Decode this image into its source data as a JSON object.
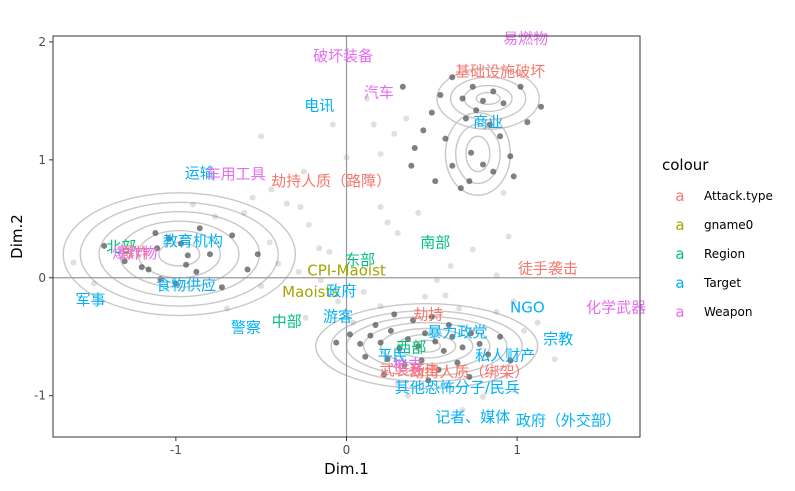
{
  "chart_data": {
    "type": "scatter",
    "xlabel": "Dim.1",
    "ylabel": "Dim.2",
    "xlim": [
      -1.72,
      1.72
    ],
    "ylim": [
      -1.35,
      2.05
    ],
    "x_ticks": [
      -1,
      0,
      1
    ],
    "y_ticks": [
      -1,
      0,
      1,
      2
    ],
    "grid": false,
    "reference_lines": {
      "x": 0,
      "y": 0
    },
    "legend": {
      "title": "colour",
      "position": "right",
      "key_glyph": "a",
      "entries": [
        {
          "name": "Attack.type",
          "color": "#F8766D"
        },
        {
          "name": "gname0",
          "color": "#A3A500"
        },
        {
          "name": "Region",
          "color": "#00BF7D"
        },
        {
          "name": "Target",
          "color": "#00B0F6"
        },
        {
          "name": "Weapon",
          "color": "#E76BF3"
        }
      ]
    },
    "colors": {
      "Attack.type": "#F8766D",
      "gname0": "#A3A500",
      "Region": "#00BF7D",
      "Target": "#00B0F6",
      "Weapon": "#E76BF3",
      "contour": "#c8c8c8",
      "point": "#555555"
    },
    "labels": [
      {
        "text": "破坏装备",
        "x": -0.02,
        "y": 1.88,
        "group": "Weapon"
      },
      {
        "text": "易燃物",
        "x": 1.05,
        "y": 2.03,
        "group": "Weapon"
      },
      {
        "text": "基础设施破坏",
        "x": 0.9,
        "y": 1.75,
        "group": "Attack.type"
      },
      {
        "text": "汽车",
        "x": 0.19,
        "y": 1.57,
        "group": "Weapon"
      },
      {
        "text": "电讯",
        "x": -0.16,
        "y": 1.46,
        "group": "Target"
      },
      {
        "text": "商业",
        "x": 0.83,
        "y": 1.32,
        "group": "Target"
      },
      {
        "text": "运输",
        "x": -0.86,
        "y": 0.89,
        "group": "Target"
      },
      {
        "text": "车用工具",
        "x": -0.65,
        "y": 0.88,
        "group": "Weapon"
      },
      {
        "text": "劫持人质（路障）",
        "x": -0.09,
        "y": 0.82,
        "group": "Attack.type"
      },
      {
        "text": "北部",
        "x": -1.32,
        "y": 0.26,
        "group": "Region"
      },
      {
        "text": "爆炸",
        "x": -1.24,
        "y": 0.21,
        "group": "Attack.type"
      },
      {
        "text": "爆炸物",
        "x": -1.24,
        "y": 0.21,
        "group": "Weapon"
      },
      {
        "text": "教育机构",
        "x": -0.9,
        "y": 0.31,
        "group": "Target"
      },
      {
        "text": "南部",
        "x": 0.52,
        "y": 0.3,
        "group": "Region"
      },
      {
        "text": "东部",
        "x": 0.08,
        "y": 0.15,
        "group": "Region"
      },
      {
        "text": "CPI-Maoist",
        "x": 0.0,
        "y": 0.06,
        "group": "gname0"
      },
      {
        "text": "徒手袭击",
        "x": 1.18,
        "y": 0.08,
        "group": "Attack.type"
      },
      {
        "text": "食物供应",
        "x": -0.94,
        "y": -0.06,
        "group": "Target"
      },
      {
        "text": "军事",
        "x": -1.5,
        "y": -0.19,
        "group": "Target"
      },
      {
        "text": "Maoists",
        "x": -0.21,
        "y": -0.12,
        "group": "gname0"
      },
      {
        "text": "政府",
        "x": -0.03,
        "y": -0.11,
        "group": "Target"
      },
      {
        "text": "NGO",
        "x": 1.06,
        "y": -0.25,
        "group": "Target"
      },
      {
        "text": "化学武器",
        "x": 1.58,
        "y": -0.25,
        "group": "Weapon"
      },
      {
        "text": "警察",
        "x": -0.59,
        "y": -0.42,
        "group": "Target"
      },
      {
        "text": "中部",
        "x": -0.35,
        "y": -0.37,
        "group": "Region"
      },
      {
        "text": "游客",
        "x": -0.05,
        "y": -0.33,
        "group": "Target"
      },
      {
        "text": "劫持",
        "x": 0.48,
        "y": -0.31,
        "group": "Attack.type"
      },
      {
        "text": "暴力政党",
        "x": 0.65,
        "y": -0.46,
        "group": "Target"
      },
      {
        "text": "宗教",
        "x": 1.24,
        "y": -0.52,
        "group": "Target"
      },
      {
        "text": "西部",
        "x": 0.38,
        "y": -0.59,
        "group": "Region"
      },
      {
        "text": "武装袭击",
        "x": 0.37,
        "y": -0.78,
        "group": "Attack.type"
      },
      {
        "text": "平民",
        "x": 0.27,
        "y": -0.66,
        "group": "Target"
      },
      {
        "text": "私人财产",
        "x": 0.93,
        "y": -0.66,
        "group": "Target"
      },
      {
        "text": "枪支",
        "x": 0.36,
        "y": -0.74,
        "group": "Weapon"
      },
      {
        "text": "劫持人质（绑架）",
        "x": 0.72,
        "y": -0.8,
        "group": "Attack.type"
      },
      {
        "text": "其他恐怖分子/民兵",
        "x": 0.65,
        "y": -0.93,
        "group": "Target"
      },
      {
        "text": "记者、媒体",
        "x": 0.74,
        "y": -1.18,
        "group": "Target"
      },
      {
        "text": "政府（外交部）",
        "x": 1.3,
        "y": -1.21,
        "group": "Target"
      }
    ],
    "points": [
      [
        -1.04,
        0.33
      ],
      [
        -0.97,
        0.29
      ],
      [
        -0.93,
        0.19
      ],
      [
        -1.11,
        0.25
      ],
      [
        -1.16,
        0.07
      ],
      [
        -0.94,
        0.11
      ],
      [
        -0.86,
        0.42
      ],
      [
        -0.8,
        0.2
      ],
      [
        -1.2,
        0.09
      ],
      [
        -1.09,
        -0.01
      ],
      [
        -1.0,
        -0.05
      ],
      [
        -0.88,
        0.05
      ],
      [
        -1.12,
        0.38
      ],
      [
        -0.77,
        0.52
      ],
      [
        -0.67,
        0.36
      ],
      [
        -0.58,
        0.07
      ],
      [
        -0.52,
        0.2
      ],
      [
        -0.45,
        0.3
      ],
      [
        -0.6,
        0.55
      ],
      [
        -0.35,
        0.63
      ],
      [
        -0.73,
        -0.08
      ],
      [
        -1.3,
        0.14
      ],
      [
        -0.4,
        0.12
      ],
      [
        -0.27,
        0.6
      ],
      [
        -0.16,
        0.25
      ],
      [
        -0.9,
        0.62
      ],
      [
        -0.5,
        -0.07
      ],
      [
        -1.42,
        0.27
      ],
      [
        -0.7,
        -0.26
      ],
      [
        -0.28,
        0.05
      ],
      [
        -0.1,
        0.22
      ],
      [
        -1.6,
        0.13
      ],
      [
        -0.44,
        0.75
      ],
      [
        -0.22,
        0.45
      ],
      [
        -1.48,
        -0.05
      ],
      [
        0.02,
        -0.48
      ],
      [
        0.08,
        -0.56
      ],
      [
        0.14,
        -0.49
      ],
      [
        0.2,
        -0.55
      ],
      [
        0.26,
        -0.45
      ],
      [
        0.31,
        -0.6
      ],
      [
        0.36,
        -0.52
      ],
      [
        0.42,
        -0.58
      ],
      [
        0.46,
        -0.47
      ],
      [
        0.52,
        -0.54
      ],
      [
        0.57,
        -0.62
      ],
      [
        0.62,
        -0.5
      ],
      [
        0.68,
        -0.59
      ],
      [
        0.73,
        -0.47
      ],
      [
        0.78,
        -0.56
      ],
      [
        0.24,
        -0.69
      ],
      [
        0.34,
        -0.74
      ],
      [
        0.44,
        -0.7
      ],
      [
        0.54,
        -0.78
      ],
      [
        0.65,
        -0.72
      ],
      [
        0.11,
        -0.67
      ],
      [
        0.39,
        -0.36
      ],
      [
        0.5,
        -0.33
      ],
      [
        0.6,
        -0.4
      ],
      [
        0.28,
        -0.31
      ],
      [
        0.17,
        -0.4
      ],
      [
        -0.06,
        -0.55
      ],
      [
        0.83,
        -0.65
      ],
      [
        0.9,
        -0.5
      ],
      [
        0.48,
        -0.87
      ],
      [
        0.6,
        -0.91
      ],
      [
        0.72,
        -0.84
      ],
      [
        0.3,
        -0.9
      ],
      [
        0.04,
        -0.38
      ],
      [
        0.96,
        -0.7
      ],
      [
        0.2,
        -0.24
      ],
      [
        0.66,
        -0.26
      ],
      [
        0.58,
        -0.15
      ],
      [
        0.46,
        -0.16
      ],
      [
        0.88,
        -0.29
      ],
      [
        1.04,
        -0.45
      ],
      [
        0.8,
        -1.01
      ],
      [
        0.36,
        -1.0
      ],
      [
        0.53,
        -0.02
      ],
      [
        0.88,
        0.02
      ],
      [
        0.98,
        -0.2
      ],
      [
        0.3,
        0.38
      ],
      [
        0.42,
        0.55
      ],
      [
        0.61,
        0.1
      ],
      [
        0.2,
        0.6
      ],
      [
        0.74,
        0.24
      ],
      [
        0.95,
        0.35
      ],
      [
        0.12,
        0.86
      ],
      [
        0.24,
        0.47
      ],
      [
        -0.05,
        -0.2
      ],
      [
        0.1,
        -0.12
      ],
      [
        1.12,
        -0.38
      ],
      [
        1.22,
        -0.69
      ],
      [
        0.68,
        -1.12
      ],
      [
        0.98,
        -0.95
      ],
      [
        0.22,
        -0.82
      ],
      [
        -0.24,
        -0.34
      ],
      [
        -0.15,
        -0.02
      ],
      [
        0.68,
        1.52
      ],
      [
        0.74,
        1.62
      ],
      [
        0.8,
        1.5
      ],
      [
        0.86,
        1.58
      ],
      [
        0.92,
        1.48
      ],
      [
        0.76,
        1.42
      ],
      [
        0.7,
        1.35
      ],
      [
        0.84,
        1.3
      ],
      [
        0.9,
        1.2
      ],
      [
        0.73,
        1.06
      ],
      [
        0.8,
        0.96
      ],
      [
        0.72,
        0.82
      ],
      [
        0.67,
        0.76
      ],
      [
        0.86,
        0.9
      ],
      [
        0.96,
        1.03
      ],
      [
        0.62,
        1.7
      ],
      [
        0.55,
        1.55
      ],
      [
        0.5,
        1.4
      ],
      [
        1.02,
        1.62
      ],
      [
        0.62,
        0.95
      ],
      [
        1.06,
        1.32
      ],
      [
        0.58,
        1.18
      ],
      [
        0.45,
        1.25
      ],
      [
        0.35,
        1.35
      ],
      [
        0.28,
        1.22
      ],
      [
        0.2,
        1.05
      ],
      [
        0.38,
        0.95
      ],
      [
        0.52,
        0.82
      ],
      [
        1.14,
        1.45
      ],
      [
        0.33,
        1.62
      ],
      [
        0.16,
        1.3
      ],
      [
        0.98,
        0.86
      ],
      [
        0.12,
        1.52
      ],
      [
        0.4,
        1.1
      ],
      [
        0.92,
        0.72
      ],
      [
        -0.5,
        1.2
      ],
      [
        -0.55,
        0.68
      ],
      [
        -0.25,
        0.9
      ],
      [
        0.0,
        1.02
      ],
      [
        -0.08,
        1.3
      ]
    ],
    "contours": [
      {
        "cx": -0.98,
        "cy": 0.2,
        "levels": [
          [
            0.12,
            0.1
          ],
          [
            0.24,
            0.2
          ],
          [
            0.35,
            0.28
          ],
          [
            0.47,
            0.36
          ],
          [
            0.58,
            0.44
          ],
          [
            0.68,
            0.52
          ]
        ]
      },
      {
        "cx": 0.47,
        "cy": -0.58,
        "levels": [
          [
            0.08,
            0.05
          ],
          [
            0.17,
            0.1
          ],
          [
            0.27,
            0.15
          ],
          [
            0.37,
            0.2
          ],
          [
            0.47,
            0.25
          ],
          [
            0.56,
            0.3
          ],
          [
            0.65,
            0.36
          ]
        ]
      },
      {
        "cx": 0.83,
        "cy": 1.52,
        "levels": [
          [
            0.07,
            0.05
          ],
          [
            0.14,
            0.11
          ],
          [
            0.22,
            0.18
          ],
          [
            0.3,
            0.26
          ]
        ]
      },
      {
        "cx": 0.77,
        "cy": 1.05,
        "levels": [
          [
            0.07,
            0.15
          ],
          [
            0.13,
            0.25
          ],
          [
            0.19,
            0.35
          ]
        ]
      }
    ]
  }
}
